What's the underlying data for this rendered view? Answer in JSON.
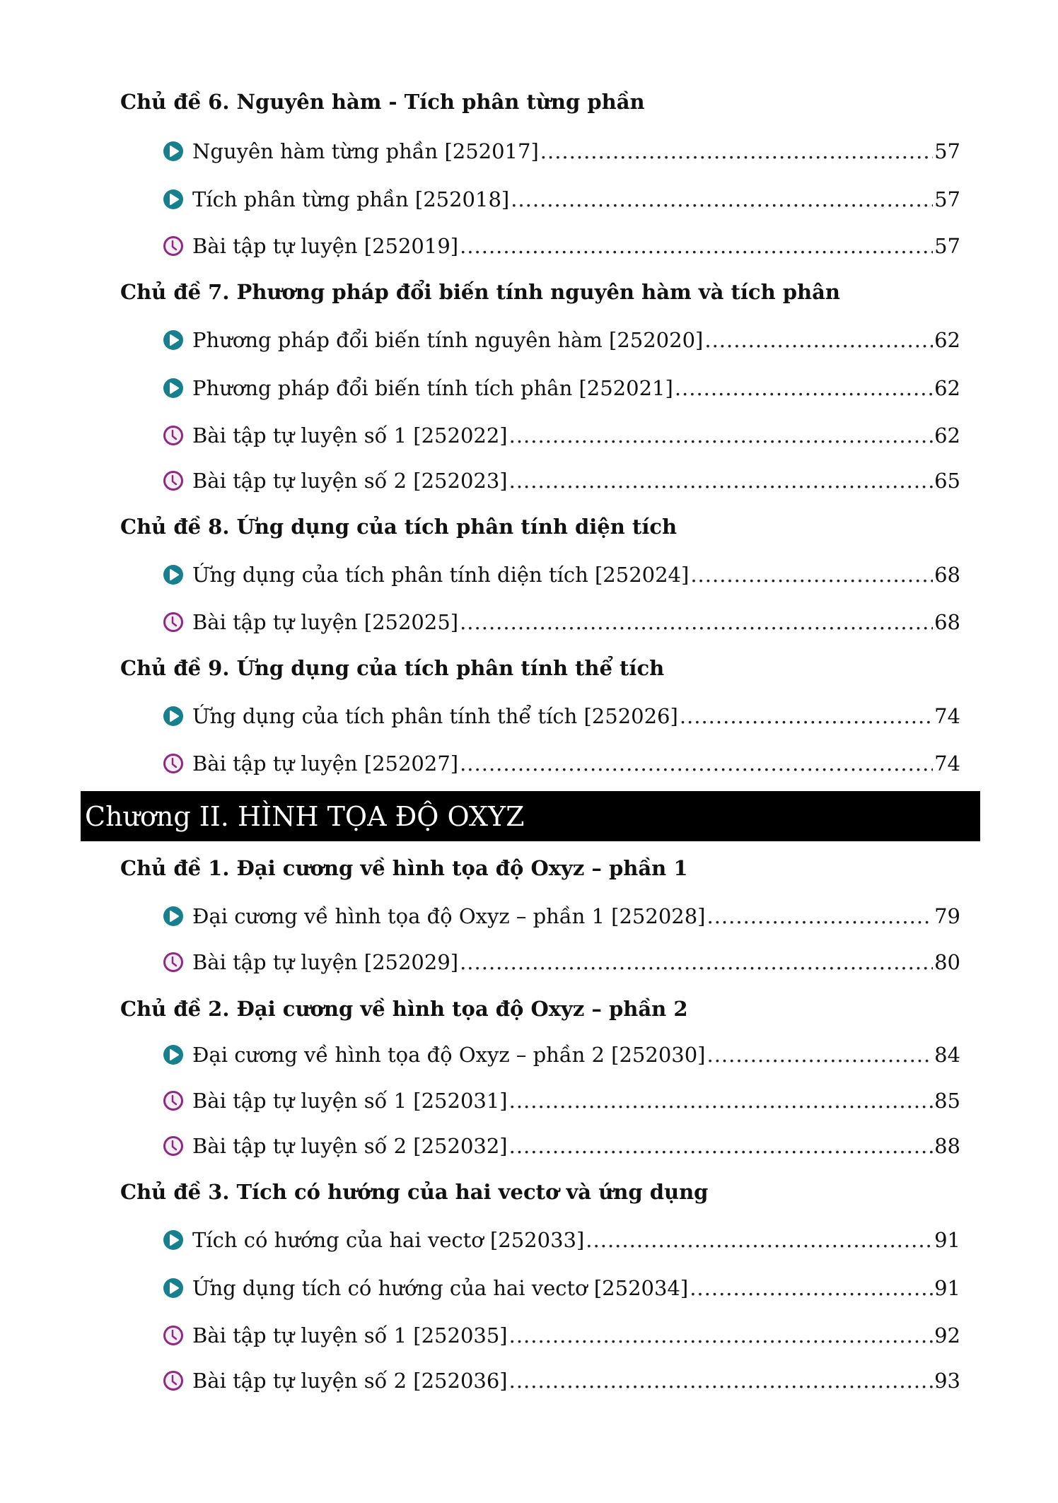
{
  "sections": [
    {
      "type": "topic",
      "text": "Chủ đề 6. Nguyên hàm - Tích phân từng phần"
    },
    {
      "type": "item",
      "icon": "play-icon",
      "text": "Nguyên hàm từng phần [252017]",
      "page": "57"
    },
    {
      "type": "item",
      "icon": "play-icon",
      "text": "Tích phân từng phần [252018]",
      "page": "57"
    },
    {
      "type": "item",
      "icon": "clock-icon",
      "text": "Bài tập tự luyện [252019]",
      "page": "57"
    },
    {
      "type": "topic",
      "text": "Chủ đề 7. Phương pháp đổi biến tính nguyên hàm và tích phân"
    },
    {
      "type": "item",
      "icon": "play-icon",
      "text": "Phương pháp đổi biến tính nguyên hàm [252020]",
      "page": "62"
    },
    {
      "type": "item",
      "icon": "play-icon",
      "text": "Phương pháp đổi biến tính tích phân [252021]",
      "page": "62"
    },
    {
      "type": "item",
      "icon": "clock-icon",
      "text": "Bài tập tự luyện số 1 [252022]",
      "page": "62"
    },
    {
      "type": "item",
      "icon": "clock-icon",
      "text": "Bài tập tự luyện số 2 [252023]",
      "page": "65"
    },
    {
      "type": "topic",
      "text": "Chủ đề 8. Ứng dụng của tích phân tính diện tích"
    },
    {
      "type": "item",
      "icon": "play-icon",
      "text": "Ứng dụng của tích phân tính diện tích [252024]",
      "page": "68"
    },
    {
      "type": "item",
      "icon": "clock-icon",
      "text": "Bài tập tự luyện [252025]",
      "page": "68"
    },
    {
      "type": "topic",
      "text": "Chủ đề 9. Ứng dụng của tích phân tính thể tích"
    },
    {
      "type": "item",
      "icon": "play-icon",
      "text": "Ứng dụng của tích phân tính thể tích [252026]",
      "page": "74"
    },
    {
      "type": "item",
      "icon": "clock-icon",
      "text": "Bài tập tự luyện [252027]",
      "page": "74"
    },
    {
      "type": "chapter",
      "text": "Chương II. HÌNH TỌA ĐỘ OXYZ"
    },
    {
      "type": "topic",
      "text": "Chủ đề 1. Đại cương về hình tọa độ Oxyz – phần 1"
    },
    {
      "type": "item",
      "icon": "play-icon",
      "text": "Đại cương về hình tọa độ Oxyz – phần 1 [252028]",
      "page": "79"
    },
    {
      "type": "item",
      "icon": "clock-icon",
      "text": "Bài tập tự luyện [252029]",
      "page": "80"
    },
    {
      "type": "topic",
      "text": "Chủ đề 2. Đại cương về hình tọa độ Oxyz – phần 2"
    },
    {
      "type": "item",
      "icon": "play-icon",
      "text": "Đại cương về hình tọa độ Oxyz – phần 2 [252030]",
      "page": "84"
    },
    {
      "type": "item",
      "icon": "clock-icon",
      "text": "Bài tập tự luyện số 1 [252031]",
      "page": "85"
    },
    {
      "type": "item",
      "icon": "clock-icon",
      "text": "Bài tập tự luyện số 2 [252032]",
      "page": "88"
    },
    {
      "type": "topic",
      "text": "Chủ đề 3. Tích có hướng của hai vectơ và ứng dụng"
    },
    {
      "type": "item",
      "icon": "play-icon",
      "text": "Tích có hướng của hai vectơ [252033]",
      "page": "91"
    },
    {
      "type": "item",
      "icon": "play-icon",
      "text": "Ứng dụng tích có hướng của hai vectơ [252034]",
      "page": "91"
    },
    {
      "type": "item",
      "icon": "clock-icon",
      "text": "Bài tập tự luyện số 1 [252035]",
      "page": "92"
    },
    {
      "type": "item",
      "icon": "clock-icon",
      "text": "Bài tập tự luyện số 2 [252036]",
      "page": "93"
    }
  ],
  "colors": {
    "play": "#17808f",
    "clock": "#8e2a86",
    "chapter_bg": "#000000"
  }
}
